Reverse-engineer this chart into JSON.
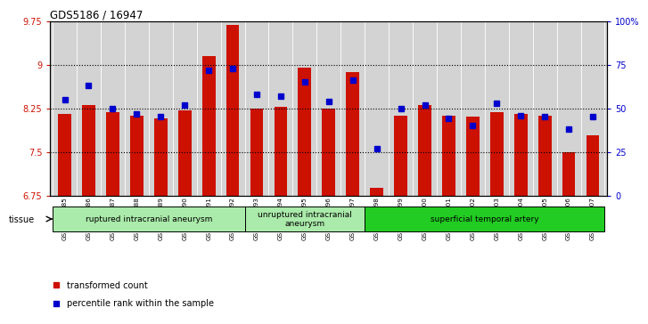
{
  "title": "GDS5186 / 16947",
  "samples": [
    "GSM1306885",
    "GSM1306886",
    "GSM1306887",
    "GSM1306888",
    "GSM1306889",
    "GSM1306890",
    "GSM1306891",
    "GSM1306892",
    "GSM1306893",
    "GSM1306894",
    "GSM1306895",
    "GSM1306896",
    "GSM1306897",
    "GSM1306898",
    "GSM1306899",
    "GSM1306900",
    "GSM1306901",
    "GSM1306902",
    "GSM1306903",
    "GSM1306904",
    "GSM1306905",
    "GSM1306906",
    "GSM1306907"
  ],
  "bar_values": [
    8.15,
    8.3,
    8.18,
    8.12,
    8.08,
    8.22,
    9.15,
    9.68,
    8.25,
    8.27,
    8.95,
    8.25,
    8.88,
    6.88,
    8.12,
    8.3,
    8.12,
    8.1,
    8.18,
    8.15,
    8.13,
    7.5,
    7.78
  ],
  "percentile_values": [
    55,
    63,
    50,
    47,
    45,
    52,
    72,
    73,
    58,
    57,
    65,
    54,
    66,
    27,
    50,
    52,
    44,
    40,
    53,
    46,
    45,
    38,
    45
  ],
  "groups": [
    {
      "label": "ruptured intracranial aneurysm",
      "start": 0,
      "end": 7,
      "color": "#aaeaaa"
    },
    {
      "label": "unruptured intracranial\naneurysm",
      "start": 8,
      "end": 12,
      "color": "#aaeaaa"
    },
    {
      "label": "superficial temporal artery",
      "start": 13,
      "end": 22,
      "color": "#22cc22"
    }
  ],
  "group_colors": [
    "#aaeaaa",
    "#aaeaaa",
    "#22cc22"
  ],
  "ylim": [
    6.75,
    9.75
  ],
  "y2lim": [
    0,
    100
  ],
  "bar_color": "#cc1100",
  "marker_color": "#0000cc",
  "plot_bg": "#d3d3d3",
  "yticks": [
    6.75,
    7.5,
    8.25,
    9.0,
    9.75
  ],
  "ytick_labels": [
    "6.75",
    "7.5",
    "8.25",
    "9",
    "9.75"
  ],
  "y2ticks": [
    0,
    25,
    50,
    75,
    100
  ],
  "y2tick_labels": [
    "0",
    "25",
    "50",
    "75",
    "100%"
  ],
  "hlines": [
    7.5,
    8.25,
    9.0
  ]
}
